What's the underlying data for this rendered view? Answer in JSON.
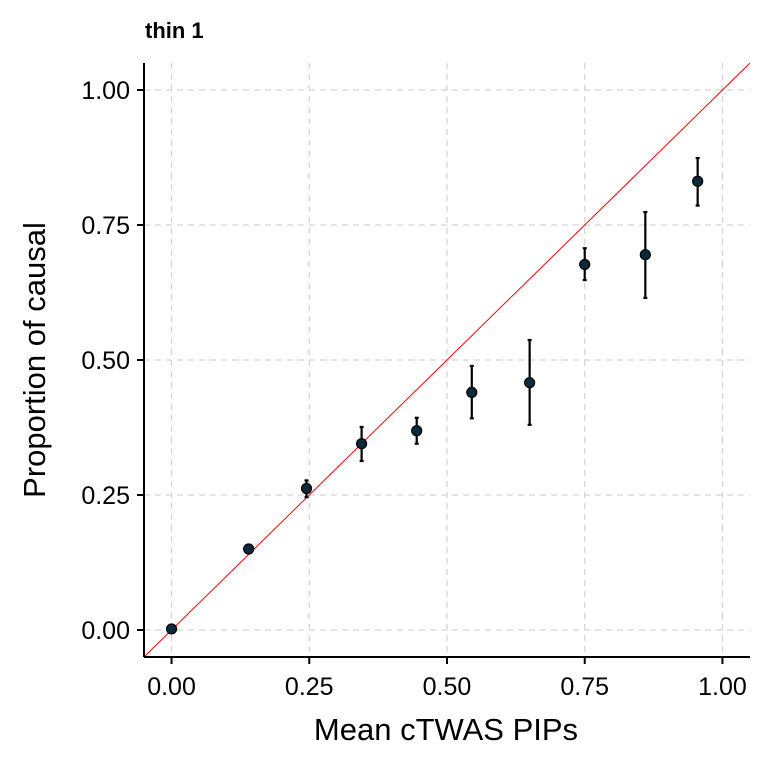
{
  "chart_data": {
    "type": "scatter",
    "title": "thin 1",
    "xlabel": "Mean cTWAS PIPs",
    "ylabel": "Proportion of causal",
    "xlim": [
      -0.05,
      1.05
    ],
    "ylim": [
      -0.05,
      1.05
    ],
    "x_ticks": [
      0.0,
      0.25,
      0.5,
      0.75,
      1.0
    ],
    "x_tick_labels": [
      "0.00",
      "0.25",
      "0.50",
      "0.75",
      "1.00"
    ],
    "y_ticks": [
      0.0,
      0.25,
      0.5,
      0.75,
      1.0
    ],
    "y_tick_labels": [
      "0.00",
      "0.25",
      "0.50",
      "0.75",
      "1.00"
    ],
    "grid": true,
    "reference_line": {
      "slope": 1,
      "intercept": 0,
      "color": "#ff0000"
    },
    "point_color": "#0a2a3c",
    "points": [
      {
        "x": 0.0,
        "y": 0.002,
        "lower": 0.0,
        "upper": 0.004
      },
      {
        "x": 0.14,
        "y": 0.15,
        "lower": 0.143,
        "upper": 0.158
      },
      {
        "x": 0.245,
        "y": 0.262,
        "lower": 0.246,
        "upper": 0.277
      },
      {
        "x": 0.345,
        "y": 0.345,
        "lower": 0.313,
        "upper": 0.376
      },
      {
        "x": 0.445,
        "y": 0.369,
        "lower": 0.345,
        "upper": 0.393
      },
      {
        "x": 0.545,
        "y": 0.44,
        "lower": 0.392,
        "upper": 0.489
      },
      {
        "x": 0.65,
        "y": 0.458,
        "lower": 0.38,
        "upper": 0.537
      },
      {
        "x": 0.75,
        "y": 0.677,
        "lower": 0.648,
        "upper": 0.707
      },
      {
        "x": 0.86,
        "y": 0.695,
        "lower": 0.615,
        "upper": 0.774
      },
      {
        "x": 0.955,
        "y": 0.831,
        "lower": 0.786,
        "upper": 0.874
      }
    ]
  }
}
